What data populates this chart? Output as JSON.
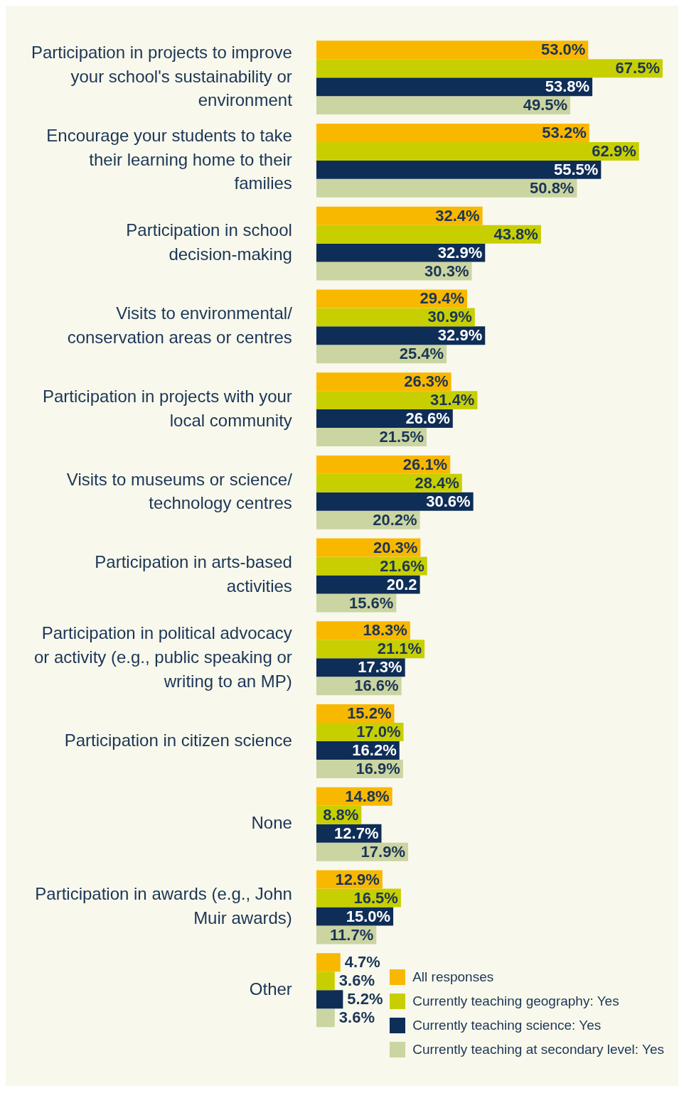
{
  "chart_data": {
    "type": "bar",
    "orientation": "horizontal",
    "legend": "bottom right",
    "categories": [
      "Participation in projects to improve your school's sustainability or environment",
      "Encourage your students to take their learning home to their families",
      "Participation in school decision-making",
      "Visits to environmental/ conservation areas or centres",
      "Participation in projects with your local community",
      "Visits to museums or science/ technology centres",
      "Participation in arts-based activities",
      "Participation in political advocacy or activity (e.g., public speaking or writing to an MP)",
      "Participation in citizen science",
      "None",
      "Participation in awards (e.g., John Muir awards)",
      "Other"
    ],
    "series": [
      {
        "name": "All responses",
        "color": "#f9b800",
        "values": [
          53.0,
          53.2,
          32.4,
          29.4,
          26.3,
          26.1,
          20.3,
          18.3,
          15.2,
          14.8,
          12.9,
          4.7
        ],
        "value_labels": [
          "53.0%",
          "53.2%",
          "32.4%",
          "29.4%",
          "26.3%",
          "26.1%",
          "20.3%",
          "18.3%",
          "15.2%",
          "14.8%",
          "12.9%",
          "4.7%"
        ]
      },
      {
        "name": "Currently teaching geography: Yes",
        "color": "#c8cf00",
        "values": [
          67.5,
          62.9,
          43.8,
          30.9,
          31.4,
          28.4,
          21.6,
          21.1,
          17.0,
          8.8,
          16.5,
          3.6
        ],
        "value_labels": [
          "67.5%",
          "62.9%",
          "43.8%",
          "30.9%",
          "31.4%",
          "28.4%",
          "21.6%",
          "21.1%",
          "17.0%",
          "8.8%",
          "16.5%",
          "3.6%"
        ]
      },
      {
        "name": "Currently teaching science: Yes",
        "color": "#0e2d57",
        "values": [
          53.8,
          55.5,
          32.9,
          32.9,
          26.6,
          30.6,
          20.2,
          17.3,
          16.2,
          12.7,
          15.0,
          5.2
        ],
        "value_labels": [
          "53.8%",
          "55.5%",
          "32.9%",
          "32.9%",
          "26.6%",
          "30.6%",
          "20.2",
          "17.3%",
          "16.2%",
          "12.7%",
          "15.0%",
          "5.2%"
        ]
      },
      {
        "name": "Currently teaching at secondary level: Yes",
        "color": "#cbd5a2",
        "values": [
          49.5,
          50.8,
          30.3,
          25.4,
          21.5,
          20.2,
          15.6,
          16.6,
          16.9,
          17.9,
          11.7,
          3.6
        ],
        "value_labels": [
          "49.5%",
          "50.8%",
          "30.3%",
          "25.4%",
          "21.5%",
          "20.2%",
          "15.6%",
          "16.6%",
          "16.9%",
          "17.9%",
          "11.7%",
          "3.6%"
        ]
      }
    ]
  }
}
